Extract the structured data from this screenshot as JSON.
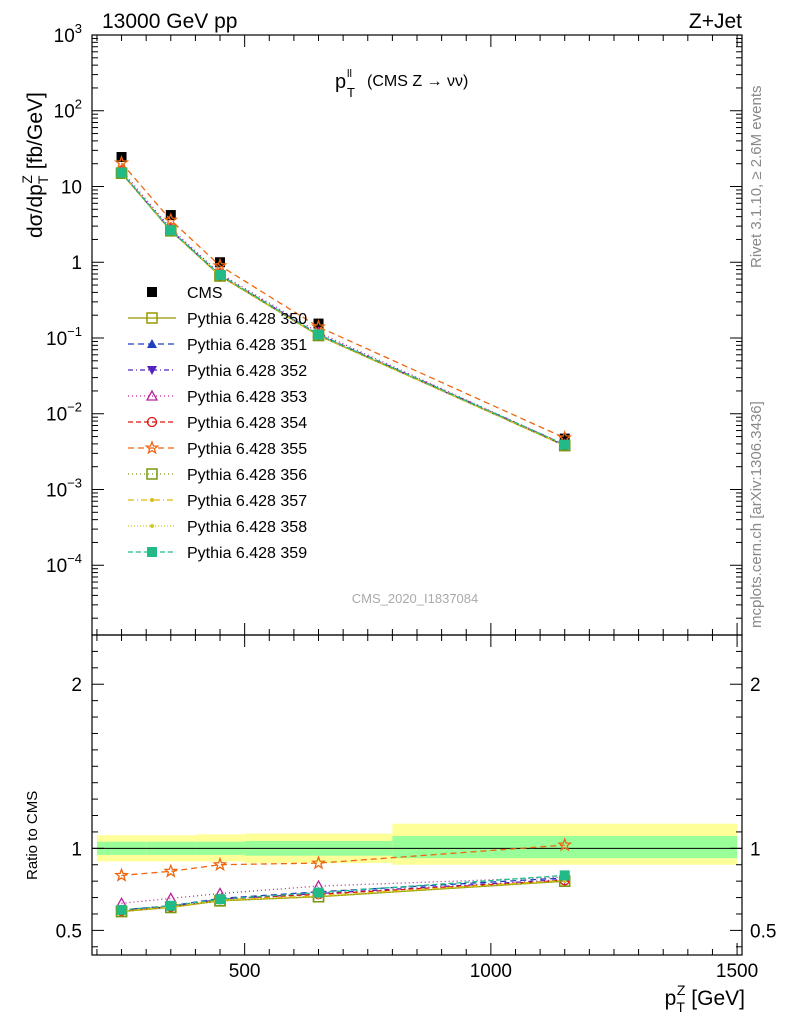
{
  "header": {
    "left": "13000 GeV pp",
    "right": "Z+Jet"
  },
  "side_text": {
    "top": "Rivet 3.1.10, ≥ 2.6M events",
    "bottom": "mcplots.cern.ch [arXiv:1306.3436]"
  },
  "plot_title": {
    "main": "p",
    "sup": "ll",
    "sub": "T",
    "rest": "(CMS Z → νν)"
  },
  "watermark": "CMS_2020_I1837084",
  "colors": {
    "band_inner": "#99ff99",
    "band_outer": "#ffff99"
  },
  "chart_data": [
    {
      "type": "line",
      "name": "main",
      "y_scale": "log",
      "xlim": [
        190,
        1510
      ],
      "ylim": [
        1.2e-05,
        1000
      ],
      "ylabel": "dσ/dp_T^Z [fb/GeV]",
      "y_ticks": [
        {
          "v": 1000,
          "base": "10",
          "exp": "3"
        },
        {
          "v": 100,
          "base": "10",
          "exp": "2"
        },
        {
          "v": 10,
          "base": "10",
          "exp": ""
        },
        {
          "v": 1,
          "base": "1",
          "exp": ""
        },
        {
          "v": 0.1,
          "base": "10",
          "exp": "−1"
        },
        {
          "v": 0.01,
          "base": "10",
          "exp": "−2"
        },
        {
          "v": 0.001,
          "base": "10",
          "exp": "−3"
        },
        {
          "v": 0.0001,
          "base": "10",
          "exp": "−4"
        }
      ],
      "x": [
        250,
        350,
        450,
        650,
        1150
      ],
      "series": [
        {
          "name": "CMS",
          "values": [
            24.5,
            4.2,
            1.0,
            0.155,
            0.0047
          ],
          "color": "#000000",
          "marker": "square-filled",
          "dash": "none"
        },
        {
          "name": "Pythia 6.428 350",
          "values": [
            15.0,
            2.6,
            0.66,
            0.108,
            0.0038
          ],
          "color": "#999900",
          "marker": "square-open",
          "dash": "solid"
        },
        {
          "name": "Pythia 6.428 351",
          "values": [
            15.2,
            2.65,
            0.68,
            0.112,
            0.0039
          ],
          "color": "#1f3fbf",
          "marker": "triangle-up-filled",
          "dash": "6,4"
        },
        {
          "name": "Pythia 6.428 352",
          "values": [
            15.1,
            2.62,
            0.67,
            0.11,
            0.0038
          ],
          "color": "#5522bb",
          "marker": "triangle-down-filled",
          "dash": "5,3,1,3"
        },
        {
          "name": "Pythia 6.428 353",
          "values": [
            16.3,
            2.8,
            0.71,
            0.118,
            0.0039
          ],
          "color": "#bb2299",
          "marker": "triangle-up-open",
          "dash": "1,3"
        },
        {
          "name": "Pythia 6.428 354",
          "values": [
            15.1,
            2.63,
            0.67,
            0.11,
            0.0038
          ],
          "color": "#dd1111",
          "marker": "circle-open",
          "dash": "5,3"
        },
        {
          "name": "Pythia 6.428 355",
          "values": [
            20.5,
            3.6,
            0.9,
            0.14,
            0.0048
          ],
          "color": "#ee6611",
          "marker": "star-open",
          "dash": "6,4"
        },
        {
          "name": "Pythia 6.428 356",
          "values": [
            15.0,
            2.6,
            0.66,
            0.108,
            0.0038
          ],
          "color": "#779911",
          "marker": "square-open",
          "dash": "1,3"
        },
        {
          "name": "Pythia 6.428 357",
          "values": [
            15.1,
            2.61,
            0.67,
            0.109,
            0.0038
          ],
          "color": "#ddbb11",
          "marker": "dot",
          "dash": "6,3,1,3"
        },
        {
          "name": "Pythia 6.428 358",
          "values": [
            15.0,
            2.6,
            0.66,
            0.108,
            0.0038
          ],
          "color": "#cccc22",
          "marker": "dot",
          "dash": "1,2"
        },
        {
          "name": "Pythia 6.428 359",
          "values": [
            15.2,
            2.64,
            0.68,
            0.111,
            0.0039
          ],
          "color": "#22bb88",
          "marker": "square-filled",
          "dash": "5,3"
        }
      ]
    },
    {
      "type": "line",
      "name": "ratio",
      "ylabel": "Ratio to CMS",
      "xlabel": "p_T^Z [GeV]",
      "xlim": [
        190,
        1510
      ],
      "ylim": [
        0.35,
        2.3
      ],
      "y_ticks": [
        {
          "v": 0.5,
          "label": "0.5"
        },
        {
          "v": 1,
          "label": "1"
        },
        {
          "v": 2,
          "label": "2"
        }
      ],
      "x_ticks": [
        {
          "v": 500,
          "label": "500"
        },
        {
          "v": 1000,
          "label": "1000"
        },
        {
          "v": 1500,
          "label": "1500"
        }
      ],
      "bands": [
        {
          "x0": 200,
          "x1": 300,
          "inner": [
            0.96,
            1.04
          ],
          "outer": [
            0.92,
            1.08
          ]
        },
        {
          "x0": 300,
          "x1": 400,
          "inner": [
            0.96,
            1.04
          ],
          "outer": [
            0.92,
            1.08
          ]
        },
        {
          "x0": 400,
          "x1": 500,
          "inner": [
            0.96,
            1.04
          ],
          "outer": [
            0.92,
            1.085
          ]
        },
        {
          "x0": 500,
          "x1": 800,
          "inner": [
            0.955,
            1.045
          ],
          "outer": [
            0.91,
            1.09
          ]
        },
        {
          "x0": 800,
          "x1": 1500,
          "inner": [
            0.94,
            1.075
          ],
          "outer": [
            0.9,
            1.15
          ]
        }
      ],
      "x": [
        250,
        350,
        450,
        650,
        1150
      ],
      "series": [
        {
          "name": "Pythia 6.428 350",
          "values": [
            0.615,
            0.64,
            0.68,
            0.705,
            0.8
          ]
        },
        {
          "name": "Pythia 6.428 351",
          "values": [
            0.625,
            0.65,
            0.695,
            0.735,
            0.82
          ]
        },
        {
          "name": "Pythia 6.428 352",
          "values": [
            0.62,
            0.645,
            0.69,
            0.725,
            0.81
          ]
        },
        {
          "name": "Pythia 6.428 353",
          "values": [
            0.665,
            0.695,
            0.725,
            0.77,
            0.825
          ]
        },
        {
          "name": "Pythia 6.428 354",
          "values": [
            0.62,
            0.645,
            0.69,
            0.72,
            0.805
          ]
        },
        {
          "name": "Pythia 6.428 355",
          "values": [
            0.835,
            0.86,
            0.9,
            0.91,
            1.02
          ]
        },
        {
          "name": "Pythia 6.428 356",
          "values": [
            0.615,
            0.64,
            0.68,
            0.705,
            0.8
          ]
        },
        {
          "name": "Pythia 6.428 357",
          "values": [
            0.618,
            0.642,
            0.685,
            0.71,
            0.805
          ]
        },
        {
          "name": "Pythia 6.428 358",
          "values": [
            0.615,
            0.64,
            0.68,
            0.705,
            0.8
          ]
        },
        {
          "name": "Pythia 6.428 359",
          "values": [
            0.625,
            0.65,
            0.69,
            0.73,
            0.835
          ]
        }
      ]
    }
  ]
}
